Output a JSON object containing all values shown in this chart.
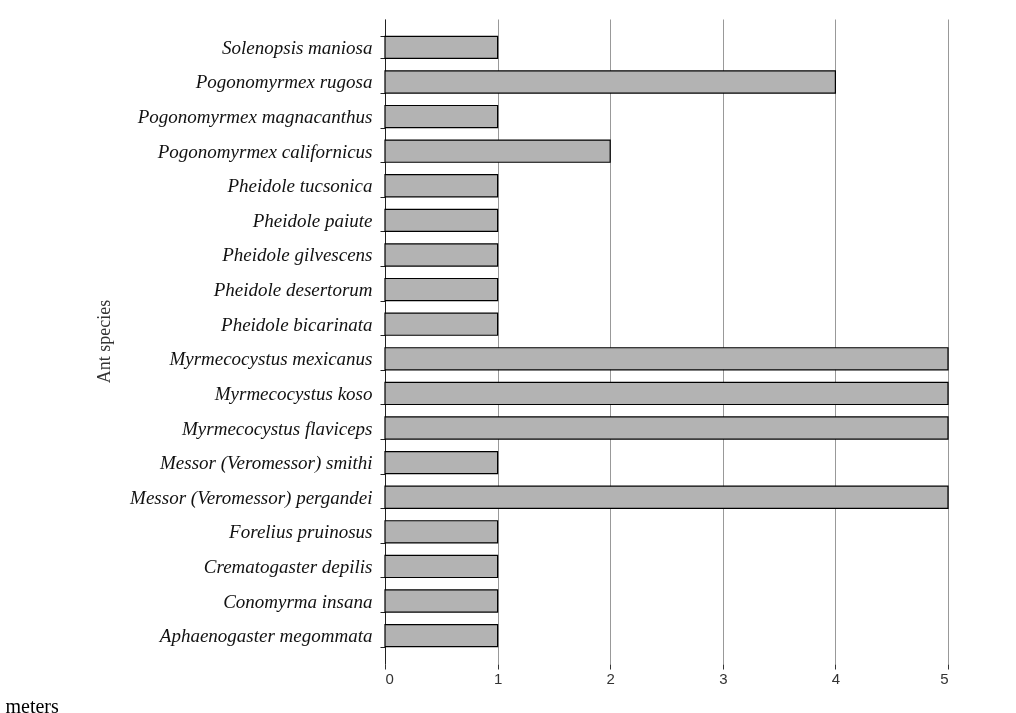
{
  "chart_data": {
    "type": "bar",
    "orientation": "horizontal",
    "xlabel": "meters",
    "ylabel": "Ant species",
    "categories": [
      "Solenopsis maniosa",
      "Pogonomyrmex rugosa",
      "Pogonomyrmex magnacanthus",
      "Pogonomyrmex californicus",
      "Pheidole tucsonica",
      "Pheidole paiute",
      "Pheidole gilvescens",
      "Pheidole desertorum",
      "Pheidole bicarinata",
      "Myrmecocystus mexicanus",
      "Myrmecocystus koso",
      "Myrmecocystus flaviceps",
      "Messor (Veromessor) smithi",
      "Messor (Veromessor) pergandei",
      "Forelius pruinosus",
      "Crematogaster depilis",
      "Conomyrma insana",
      "Aphaenogaster megommata"
    ],
    "values": [
      1,
      4,
      1,
      2,
      1,
      1,
      1,
      1,
      1,
      5,
      5,
      5,
      1,
      5,
      1,
      1,
      1,
      1
    ],
    "color": "#b3b3b3",
    "xlim": [
      0,
      5
    ],
    "xticks": [
      0,
      1,
      2,
      3,
      4,
      5
    ],
    "grid": "x"
  }
}
